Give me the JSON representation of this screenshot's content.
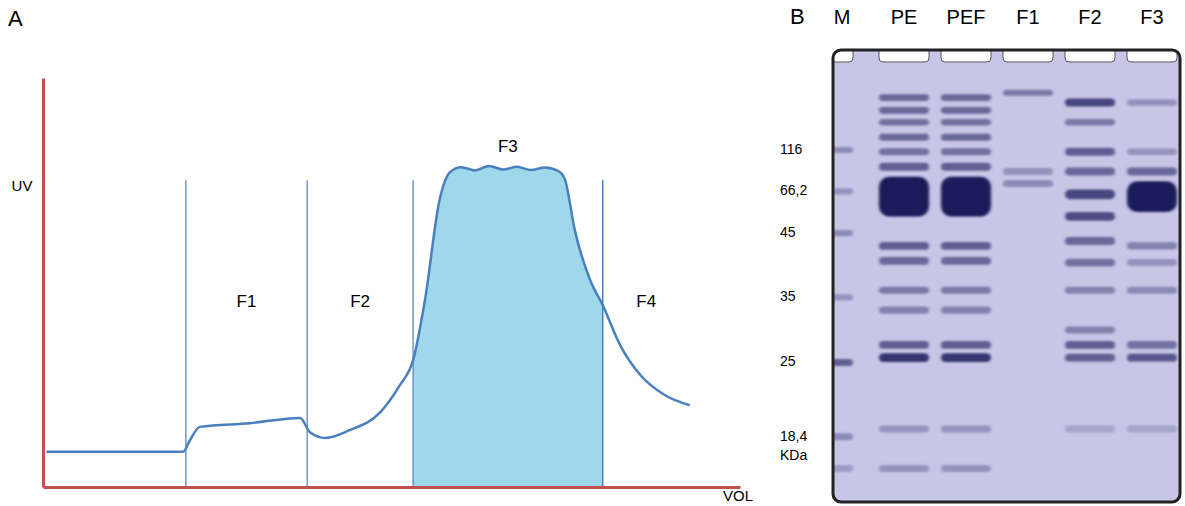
{
  "chart_data": {
    "type": "line",
    "label": "A",
    "x_label": "VOL",
    "y_label": "UV",
    "tick_labels": false,
    "grid": false,
    "color": "#4a7fbf",
    "xlim": [
      0,
      100
    ],
    "ylim": [
      0,
      100
    ],
    "xticks": [],
    "yticks": [],
    "x": [
      0.5,
      20.1,
      21.1,
      22.5,
      29.7,
      36.9,
      38.3,
      40.5,
      44.0,
      48.4,
      51.2,
      53.1,
      54.8,
      56.9,
      58.4,
      60.0,
      62.0,
      64.0,
      66.0,
      68.0,
      70.0,
      72.0,
      74.0,
      74.9,
      76.3,
      78.5,
      80.3,
      82.8,
      85.7,
      89.2,
      92.8
    ],
    "values": [
      8.6,
      8.6,
      11.5,
      14.7,
      15.6,
      16.9,
      13.4,
      12.0,
      13.9,
      18.3,
      24.9,
      31.0,
      45.7,
      70.2,
      77.0,
      78.2,
      77.4,
      78.5,
      77.6,
      78.3,
      77.5,
      78.1,
      77.2,
      75.1,
      62.8,
      50.6,
      44.5,
      34.7,
      27.4,
      22.5,
      20.0
    ],
    "regions": [
      {
        "label": "F1",
        "from": 20.5,
        "to": 37.9
      },
      {
        "label": "F2",
        "from": 37.9,
        "to": 53.1
      },
      {
        "label": "F3",
        "from": 53.1,
        "to": 80.3,
        "shaded": true,
        "color": "#9ed8ea"
      },
      {
        "label": "F4",
        "from": 80.3,
        "to": 92.8
      }
    ]
  },
  "gel": {
    "label": "B",
    "unit": "KDa",
    "ylim": [
      0,
      100
    ],
    "color": "#1b1b5c",
    "lanes": [
      "M",
      "PE",
      "PEF",
      "F1",
      "F2",
      "F3"
    ],
    "markers": [
      {
        "label": "116",
        "position": 20.9
      },
      {
        "label": "66,2",
        "position": 30.3
      },
      {
        "label": "45",
        "position": 39.8
      },
      {
        "label": "35",
        "position": 54.4
      },
      {
        "label": "25",
        "position": 69.2
      },
      {
        "label": "18,4",
        "position": 86.1
      }
    ],
    "bands": [
      [
        {
          "position": 20.9,
          "intensity": 0.35,
          "height": 1.4
        },
        {
          "position": 30.3,
          "intensity": 0.3,
          "height": 1.4
        },
        {
          "position": 39.8,
          "intensity": 0.35,
          "height": 1.4
        },
        {
          "position": 54.4,
          "intensity": 0.3,
          "height": 1.4
        },
        {
          "position": 69.2,
          "intensity": 0.6,
          "height": 1.6
        },
        {
          "position": 86.1,
          "intensity": 0.35,
          "height": 1.6
        },
        {
          "position": 93.3,
          "intensity": 0.25,
          "height": 1.6
        }
      ],
      [
        {
          "position": 9.0,
          "intensity": 0.55,
          "height": 1.5
        },
        {
          "position": 11.9,
          "intensity": 0.55,
          "height": 1.5
        },
        {
          "position": 14.6,
          "intensity": 0.5,
          "height": 1.5
        },
        {
          "position": 18.0,
          "intensity": 0.55,
          "height": 1.6
        },
        {
          "position": 21.3,
          "intensity": 0.5,
          "height": 1.6
        },
        {
          "position": 24.7,
          "intensity": 0.6,
          "height": 1.8
        },
        {
          "position": 31.5,
          "intensity": 1.0,
          "height": 9.0
        },
        {
          "position": 42.7,
          "intensity": 0.6,
          "height": 1.8
        },
        {
          "position": 46.1,
          "intensity": 0.55,
          "height": 1.8
        },
        {
          "position": 52.8,
          "intensity": 0.45,
          "height": 1.6
        },
        {
          "position": 57.3,
          "intensity": 0.4,
          "height": 1.6
        },
        {
          "position": 65.2,
          "intensity": 0.6,
          "height": 1.8
        },
        {
          "position": 68.1,
          "intensity": 0.85,
          "height": 2.0
        },
        {
          "position": 84.3,
          "intensity": 0.3,
          "height": 1.6
        },
        {
          "position": 93.3,
          "intensity": 0.3,
          "height": 1.6
        }
      ],
      [
        {
          "position": 9.0,
          "intensity": 0.55,
          "height": 1.5
        },
        {
          "position": 11.9,
          "intensity": 0.55,
          "height": 1.5
        },
        {
          "position": 14.6,
          "intensity": 0.5,
          "height": 1.5
        },
        {
          "position": 18.0,
          "intensity": 0.55,
          "height": 1.6
        },
        {
          "position": 21.3,
          "intensity": 0.5,
          "height": 1.6
        },
        {
          "position": 24.7,
          "intensity": 0.6,
          "height": 1.8
        },
        {
          "position": 31.5,
          "intensity": 1.0,
          "height": 9.0
        },
        {
          "position": 42.7,
          "intensity": 0.6,
          "height": 1.8
        },
        {
          "position": 46.1,
          "intensity": 0.55,
          "height": 1.8
        },
        {
          "position": 52.8,
          "intensity": 0.45,
          "height": 1.6
        },
        {
          "position": 57.3,
          "intensity": 0.4,
          "height": 1.6
        },
        {
          "position": 65.2,
          "intensity": 0.6,
          "height": 1.8
        },
        {
          "position": 68.1,
          "intensity": 0.85,
          "height": 2.0
        },
        {
          "position": 84.3,
          "intensity": 0.3,
          "height": 1.6
        },
        {
          "position": 93.3,
          "intensity": 0.3,
          "height": 1.6
        }
      ],
      [
        {
          "position": 7.9,
          "intensity": 0.45,
          "height": 1.4
        },
        {
          "position": 25.8,
          "intensity": 0.3,
          "height": 1.6
        },
        {
          "position": 28.5,
          "intensity": 0.35,
          "height": 1.6
        }
      ],
      [
        {
          "position": 10.1,
          "intensity": 0.75,
          "height": 1.8
        },
        {
          "position": 14.6,
          "intensity": 0.45,
          "height": 1.5
        },
        {
          "position": 21.3,
          "intensity": 0.6,
          "height": 1.8
        },
        {
          "position": 25.8,
          "intensity": 0.55,
          "height": 1.8
        },
        {
          "position": 31.0,
          "intensity": 0.75,
          "height": 2.2
        },
        {
          "position": 36.0,
          "intensity": 0.7,
          "height": 2.0
        },
        {
          "position": 41.6,
          "intensity": 0.55,
          "height": 1.8
        },
        {
          "position": 46.5,
          "intensity": 0.5,
          "height": 1.8
        },
        {
          "position": 52.8,
          "intensity": 0.4,
          "height": 1.6
        },
        {
          "position": 61.8,
          "intensity": 0.4,
          "height": 1.6
        },
        {
          "position": 65.2,
          "intensity": 0.6,
          "height": 1.8
        },
        {
          "position": 68.1,
          "intensity": 0.6,
          "height": 1.8
        },
        {
          "position": 84.3,
          "intensity": 0.2,
          "height": 1.6
        }
      ],
      [
        {
          "position": 10.1,
          "intensity": 0.3,
          "height": 1.5
        },
        {
          "position": 21.3,
          "intensity": 0.3,
          "height": 1.5
        },
        {
          "position": 25.8,
          "intensity": 0.55,
          "height": 1.8
        },
        {
          "position": 31.5,
          "intensity": 1.0,
          "height": 7.0
        },
        {
          "position": 42.7,
          "intensity": 0.4,
          "height": 1.6
        },
        {
          "position": 46.5,
          "intensity": 0.3,
          "height": 1.6
        },
        {
          "position": 52.8,
          "intensity": 0.35,
          "height": 1.6
        },
        {
          "position": 65.2,
          "intensity": 0.5,
          "height": 1.8
        },
        {
          "position": 68.1,
          "intensity": 0.65,
          "height": 1.8
        },
        {
          "position": 84.3,
          "intensity": 0.2,
          "height": 1.6
        }
      ]
    ]
  }
}
